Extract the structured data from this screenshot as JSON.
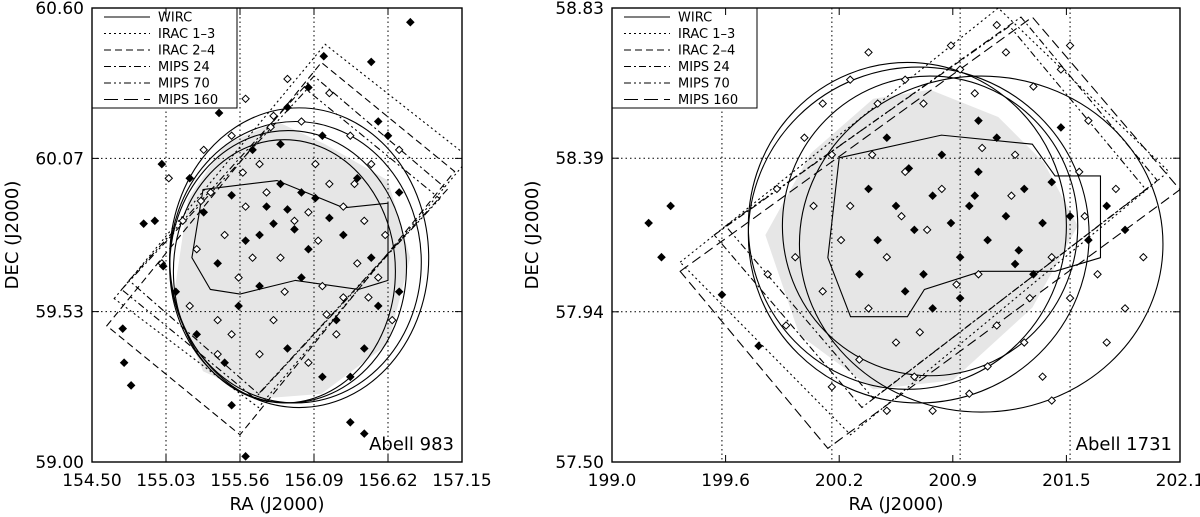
{
  "chart_data": [
    {
      "type": "scatter",
      "xlabel": "RA (J2000)",
      "ylabel": "DEC (J2000)",
      "xticks": [
        "154.50",
        "155.03",
        "155.56",
        "156.09",
        "156.62",
        "157.15"
      ],
      "yticks": [
        "59.00",
        "59.53",
        "60.07",
        "60.60"
      ],
      "xlim": [
        154.5,
        157.15
      ],
      "ylim": [
        59.0,
        60.6
      ],
      "xgrid": [
        155.03,
        155.56,
        156.09,
        156.62
      ],
      "ygrid": [
        59.53,
        60.07
      ],
      "label": "Abell 983",
      "legend": [
        "WIRC",
        "IRAC 1–3",
        "IRAC 2–4",
        "MIPS 24",
        "MIPS 70",
        "MIPS 160"
      ],
      "legend_position": "top-left",
      "series": [
        {
          "name": "filled",
          "points": [
            [
              155.9,
              59.89
            ],
            [
              155.8,
              59.84
            ],
            [
              156.0,
              59.95
            ],
            [
              155.7,
              59.8
            ],
            [
              155.95,
              59.82
            ],
            [
              156.1,
              59.93
            ],
            [
              155.6,
              59.78
            ],
            [
              156.2,
              59.86
            ],
            [
              155.85,
              59.98
            ],
            [
              155.75,
              59.9
            ],
            [
              156.05,
              59.75
            ],
            [
              155.5,
              59.94
            ],
            [
              156.3,
              59.8
            ],
            [
              155.4,
              59.7
            ],
            [
              156.4,
              60.0
            ],
            [
              155.65,
              60.1
            ],
            [
              156.15,
              60.15
            ],
            [
              155.3,
              59.88
            ],
            [
              156.5,
              59.72
            ],
            [
              155.55,
              59.55
            ],
            [
              156.25,
              59.5
            ],
            [
              155.9,
              59.4
            ],
            [
              155.2,
              60.0
            ],
            [
              156.55,
              60.2
            ],
            [
              155.1,
              59.6
            ],
            [
              156.7,
              59.95
            ],
            [
              155.35,
              60.3
            ],
            [
              156.45,
              59.4
            ],
            [
              154.95,
              59.85
            ],
            [
              156.35,
              59.3
            ],
            [
              155.45,
              59.35
            ],
            [
              155.0,
              60.05
            ],
            [
              156.62,
              60.15
            ],
            [
              155.85,
              60.12
            ],
            [
              156.0,
              59.65
            ],
            [
              155.7,
              59.62
            ],
            [
              155.25,
              59.45
            ],
            [
              156.55,
              59.55
            ],
            [
              155.9,
              60.25
            ],
            [
              156.15,
              59.3
            ],
            [
              154.72,
              59.47
            ],
            [
              154.87,
              59.84
            ],
            [
              155.6,
              59.02
            ],
            [
              156.45,
              59.1
            ],
            [
              156.35,
              59.14
            ],
            [
              156.78,
              60.55
            ],
            [
              156.5,
              60.41
            ],
            [
              156.16,
              60.43
            ],
            [
              155.41,
              60.23
            ],
            [
              154.78,
              59.27
            ],
            [
              154.73,
              59.35
            ],
            [
              155.01,
              59.69
            ],
            [
              155.5,
              59.2
            ],
            [
              156.7,
              59.6
            ],
            [
              156.05,
              60.32
            ]
          ]
        },
        {
          "name": "open",
          "points": [
            [
              155.95,
              59.85
            ],
            [
              155.75,
              59.95
            ],
            [
              156.05,
              59.88
            ],
            [
              155.85,
              59.72
            ],
            [
              155.6,
              59.9
            ],
            [
              156.2,
              59.98
            ],
            [
              155.45,
              59.8
            ],
            [
              156.3,
              59.9
            ],
            [
              155.7,
              60.05
            ],
            [
              156.1,
              60.05
            ],
            [
              155.35,
              59.95
            ],
            [
              156.4,
              59.7
            ],
            [
              155.55,
              59.65
            ],
            [
              156.15,
              59.62
            ],
            [
              155.8,
              59.5
            ],
            [
              156.45,
              59.85
            ],
            [
              155.25,
              59.75
            ],
            [
              156.6,
              59.8
            ],
            [
              155.5,
              60.15
            ],
            [
              156.0,
              60.2
            ],
            [
              155.15,
              59.85
            ],
            [
              156.5,
              60.05
            ],
            [
              155.4,
              59.5
            ],
            [
              156.25,
              59.45
            ],
            [
              155.3,
              60.1
            ],
            [
              156.35,
              60.15
            ],
            [
              155.7,
              59.38
            ],
            [
              155.9,
              60.35
            ],
            [
              155.2,
              59.55
            ],
            [
              156.55,
              59.65
            ],
            [
              155.05,
              60.0
            ],
            [
              156.7,
              60.1
            ],
            [
              155.6,
              60.28
            ],
            [
              156.2,
              60.3
            ],
            [
              155.4,
              59.38
            ],
            [
              156.05,
              59.35
            ],
            [
              155.0,
              59.7
            ],
            [
              156.65,
              59.5
            ],
            [
              155.8,
              60.22
            ],
            [
              155.5,
              59.45
            ],
            [
              156.3,
              59.58
            ],
            [
              155.65,
              59.72
            ],
            [
              156.12,
              59.78
            ],
            [
              155.88,
              59.6
            ],
            [
              155.78,
              60.18
            ],
            [
              156.38,
              59.98
            ],
            [
              155.28,
              59.92
            ],
            [
              156.48,
              59.58
            ],
            [
              155.58,
              60.02
            ],
            [
              156.18,
              59.52
            ]
          ]
        }
      ]
    },
    {
      "type": "scatter",
      "xlabel": "RA (J2000)",
      "ylabel": "DEC (J2000)",
      "xticks": [
        "199.0",
        "199.6",
        "200.2",
        "200.9",
        "201.5",
        "202.1"
      ],
      "yticks": [
        "57.50",
        "57.94",
        "58.39",
        "58.83"
      ],
      "xlim": [
        199.0,
        202.1
      ],
      "ylim": [
        57.5,
        58.83
      ],
      "xgrid": [
        199.6,
        200.2,
        200.9,
        201.5
      ],
      "ygrid": [
        57.94,
        58.39
      ],
      "label": "Abell 1731",
      "legend": [
        "WIRC",
        "IRAC 1–3",
        "IRAC 2–4",
        "MIPS 24",
        "MIPS 70",
        "MIPS 160"
      ],
      "legend_position": "top-left",
      "series": [
        {
          "name": "filled",
          "points": [
            [
              200.85,
              58.2
            ],
            [
              200.95,
              58.25
            ],
            [
              201.05,
              58.15
            ],
            [
              200.75,
              58.28
            ],
            [
              201.15,
              58.22
            ],
            [
              200.65,
              58.18
            ],
            [
              201.25,
              58.3
            ],
            [
              200.55,
              58.25
            ],
            [
              201.35,
              58.2
            ],
            [
              200.9,
              58.1
            ],
            [
              201.0,
              58.35
            ],
            [
              200.7,
              58.05
            ],
            [
              201.2,
              58.08
            ],
            [
              200.8,
              58.4
            ],
            [
              201.4,
              58.32
            ],
            [
              200.45,
              58.15
            ],
            [
              201.5,
              58.22
            ],
            [
              200.6,
              58.0
            ],
            [
              201.1,
              58.45
            ],
            [
              201.3,
              58.05
            ],
            [
              200.4,
              58.3
            ],
            [
              201.6,
              58.15
            ],
            [
              200.9,
              57.98
            ],
            [
              201.0,
              58.5
            ],
            [
              200.5,
              58.45
            ],
            [
              201.7,
              58.25
            ],
            [
              200.35,
              58.05
            ],
            [
              201.45,
              58.48
            ],
            [
              201.8,
              58.18
            ],
            [
              200.75,
              57.95
            ],
            [
              199.33,
              58.66
            ],
            [
              199.2,
              58.2
            ],
            [
              199.27,
              58.1
            ],
            [
              199.32,
              58.25
            ],
            [
              199.6,
              57.99
            ],
            [
              199.8,
              57.84
            ],
            [
              201.05,
              58.86
            ],
            [
              201.22,
              58.12
            ],
            [
              200.98,
              58.28
            ],
            [
              200.62,
              58.36
            ]
          ]
        },
        {
          "name": "open",
          "points": [
            [
              200.8,
              58.3
            ],
            [
              201.0,
              58.05
            ],
            [
              200.6,
              58.35
            ],
            [
              201.2,
              58.4
            ],
            [
              200.5,
              58.1
            ],
            [
              201.4,
              58.1
            ],
            [
              200.3,
              58.25
            ],
            [
              201.55,
              58.35
            ],
            [
              200.4,
              57.95
            ],
            [
              201.1,
              57.9
            ],
            [
              200.7,
              58.55
            ],
            [
              201.3,
              58.6
            ],
            [
              200.2,
              58.4
            ],
            [
              201.65,
              58.05
            ],
            [
              200.9,
              58.65
            ],
            [
              200.25,
              58.15
            ],
            [
              201.5,
              57.98
            ],
            [
              200.55,
              57.85
            ],
            [
              201.25,
              57.85
            ],
            [
              200.15,
              58.0
            ],
            [
              201.75,
              58.3
            ],
            [
              200.45,
              58.55
            ],
            [
              201.45,
              58.65
            ],
            [
              200.1,
              58.25
            ],
            [
              200.65,
              57.75
            ],
            [
              200.35,
              57.8
            ],
            [
              201.05,
              57.78
            ],
            [
              200.85,
              58.72
            ],
            [
              201.15,
              58.7
            ],
            [
              200.0,
              58.1
            ],
            [
              201.8,
              57.95
            ],
            [
              200.6,
              58.62
            ],
            [
              199.95,
              57.9
            ],
            [
              201.6,
              58.5
            ],
            [
              200.05,
              58.45
            ],
            [
              201.35,
              57.75
            ],
            [
              200.75,
              57.65
            ],
            [
              200.3,
              58.62
            ],
            [
              201.7,
              57.85
            ],
            [
              199.9,
              58.3
            ],
            [
              200.95,
              57.7
            ],
            [
              200.2,
              57.72
            ],
            [
              201.5,
              58.72
            ],
            [
              200.5,
              57.65
            ],
            [
              201.1,
              58.78
            ],
            [
              200.4,
              58.7
            ],
            [
              199.85,
              58.05
            ],
            [
              201.9,
              58.1
            ],
            [
              200.15,
              58.55
            ],
            [
              201.4,
              57.68
            ],
            [
              200.72,
              58.18
            ],
            [
              201.02,
              58.42
            ],
            [
              200.88,
              58.02
            ],
            [
              200.58,
              58.22
            ],
            [
              201.18,
              58.28
            ],
            [
              200.42,
              58.4
            ],
            [
              201.28,
              57.98
            ],
            [
              200.98,
              58.58
            ],
            [
              200.68,
              57.88
            ],
            [
              201.58,
              58.22
            ]
          ]
        }
      ]
    }
  ]
}
